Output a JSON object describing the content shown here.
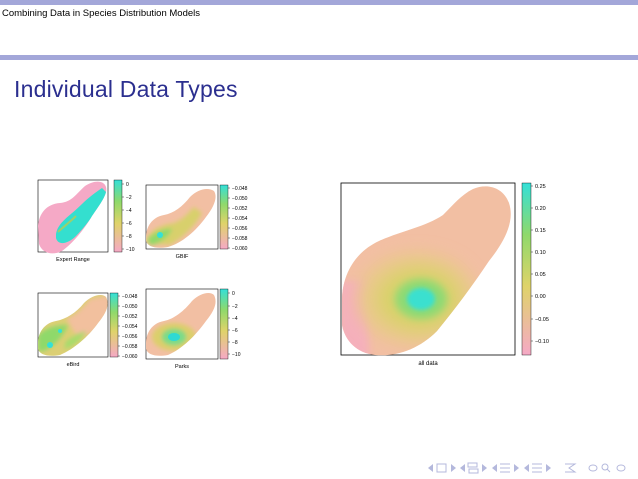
{
  "header": {
    "title": "Combining Data in Species Distribution Models"
  },
  "frame": {
    "title": "Individual Data Types"
  },
  "colors": {
    "accent": "#a3a7d9",
    "title": "#2b2f8f",
    "pink": "#f5a9c6",
    "salmon": "#f2bfa3",
    "yellow": "#dfd36a",
    "green": "#8fd96b",
    "cyan": "#35e0d6"
  },
  "panels": {
    "expert": {
      "label": "Expert Range",
      "ticks": [
        "0",
        "−2",
        "−4",
        "−6",
        "−8",
        "−10"
      ]
    },
    "gbif": {
      "label": "GBIF",
      "ticks": [
        "−0.048",
        "−0.050",
        "−0.052",
        "−0.054",
        "−0.056",
        "−0.058",
        "−0.060"
      ]
    },
    "ebird": {
      "label": "eBird",
      "ticks": [
        "−0.048",
        "−0.050",
        "−0.052",
        "−0.054",
        "−0.056",
        "−0.058",
        "−0.060"
      ]
    },
    "parks": {
      "label": "Parks",
      "ticks": [
        "0",
        "−2",
        "−4",
        "−6",
        "−8",
        "−10"
      ]
    },
    "all": {
      "label": "all data",
      "ticks": [
        "0.25",
        "0.20",
        "0.15",
        "0.10",
        "0.05",
        "0.00",
        "−0.05",
        "−0.10"
      ]
    }
  },
  "nav": {
    "icons": [
      "nav-left-icon",
      "nav-right-icon",
      "nav-frame-icon",
      "nav-section-icon",
      "nav-subsection-icon",
      "nav-align-icon",
      "nav-search-icon"
    ]
  }
}
